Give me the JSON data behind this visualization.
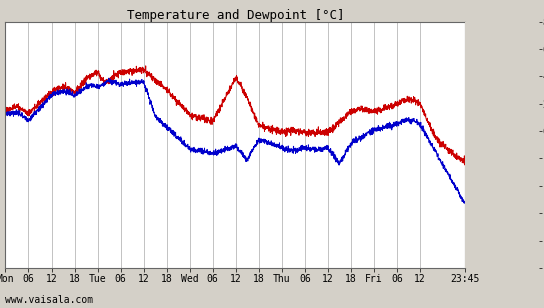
{
  "title": "Temperature and Dewpoint [°C]",
  "title_fontsize": 9,
  "ylim": [
    -10,
    8
  ],
  "yticks": [
    -10,
    -8,
    -6,
    -4,
    -2,
    0,
    2,
    4,
    6,
    8
  ],
  "bg_color": "#d4d0c8",
  "plot_bg_color": "#ffffff",
  "grid_color": "#aaaaaa",
  "temp_color": "#cc0000",
  "dewpoint_color": "#0000cc",
  "line_width": 0.7,
  "watermark": "www.vaisala.com",
  "watermark_fontsize": 7,
  "x_tick_labels": [
    "Mon",
    "06",
    "12",
    "18",
    "Tue",
    "06",
    "12",
    "18",
    "Wed",
    "06",
    "12",
    "18",
    "Thu",
    "06",
    "12",
    "18",
    "Fri",
    "06",
    "12",
    "23:45"
  ],
  "x_tick_positions": [
    0,
    6,
    12,
    18,
    24,
    30,
    36,
    42,
    48,
    54,
    60,
    66,
    72,
    78,
    84,
    90,
    96,
    102,
    108,
    119.75
  ],
  "xlim": [
    0,
    119.75
  ]
}
